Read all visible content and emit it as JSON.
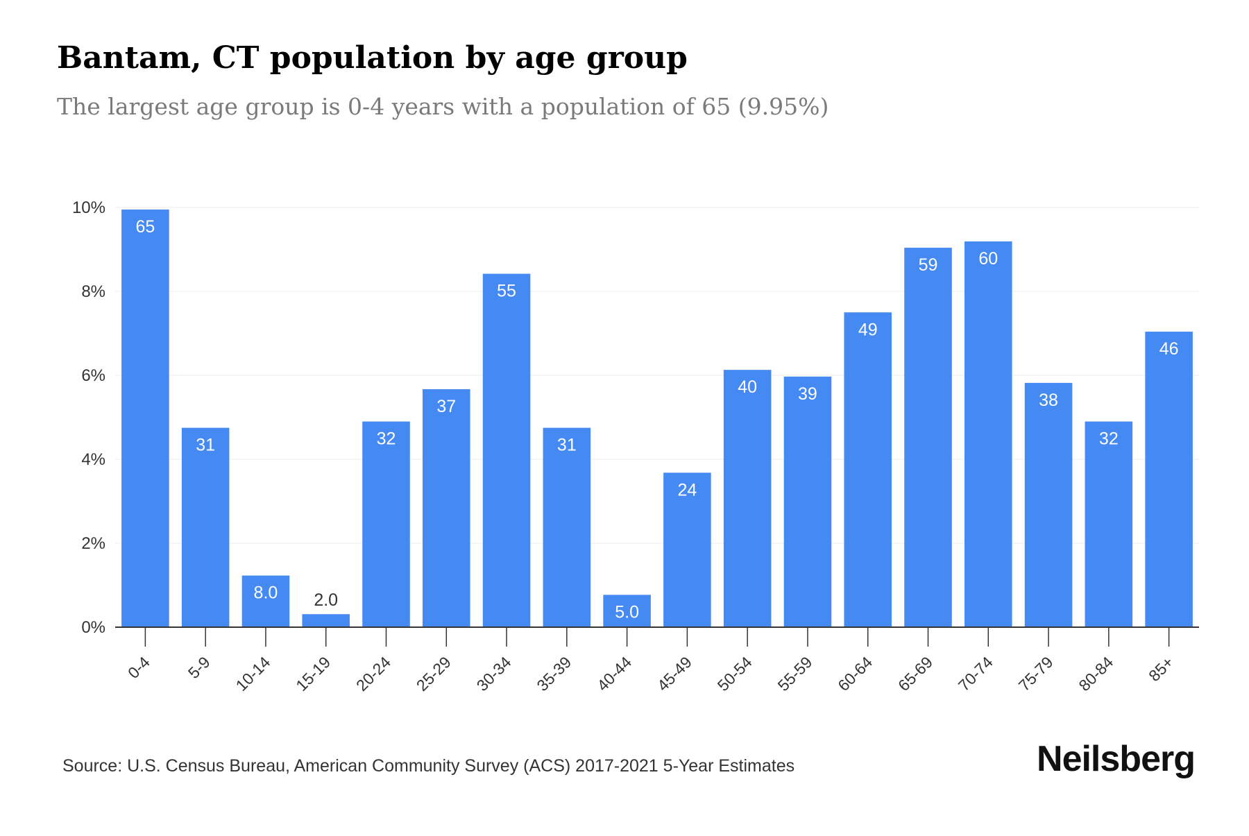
{
  "title": "Bantam, CT population by age group",
  "subtitle": "The largest age group is 0-4 years with a population of 65 (9.95%)",
  "source": "Source: U.S. Census Bureau, American Community Survey (ACS) 2017-2021 5-Year Estimates",
  "logo": "Neilsberg",
  "colors": {
    "bar": "#4589F2",
    "bar_label_inside": "#ffffff",
    "bar_label_outside": "#333333",
    "grid": "#ececec",
    "axis": "#333333",
    "tick_text": "#333333"
  },
  "chart_data": {
    "type": "bar",
    "categories": [
      "0-4",
      "5-9",
      "10-14",
      "15-19",
      "20-24",
      "25-29",
      "30-34",
      "35-39",
      "40-44",
      "45-49",
      "50-54",
      "55-59",
      "60-64",
      "65-69",
      "70-74",
      "75-79",
      "80-84",
      "85+"
    ],
    "values": [
      9.95,
      4.75,
      1.23,
      0.31,
      4.9,
      5.67,
      8.42,
      4.75,
      0.77,
      3.68,
      6.13,
      5.97,
      7.5,
      9.04,
      9.19,
      5.82,
      4.9,
      7.04
    ],
    "data_labels": [
      "65",
      "31",
      "8.0",
      "2.0",
      "32",
      "37",
      "55",
      "31",
      "5.0",
      "24",
      "40",
      "39",
      "49",
      "59",
      "60",
      "38",
      "32",
      "46"
    ],
    "ylim": [
      0,
      10
    ],
    "yticks": [
      0,
      2,
      4,
      6,
      8,
      10
    ],
    "ytick_labels": [
      "0%",
      "2%",
      "4%",
      "6%",
      "8%",
      "10%"
    ],
    "grid": true,
    "legend": false,
    "xlabel": "",
    "ylabel": ""
  }
}
